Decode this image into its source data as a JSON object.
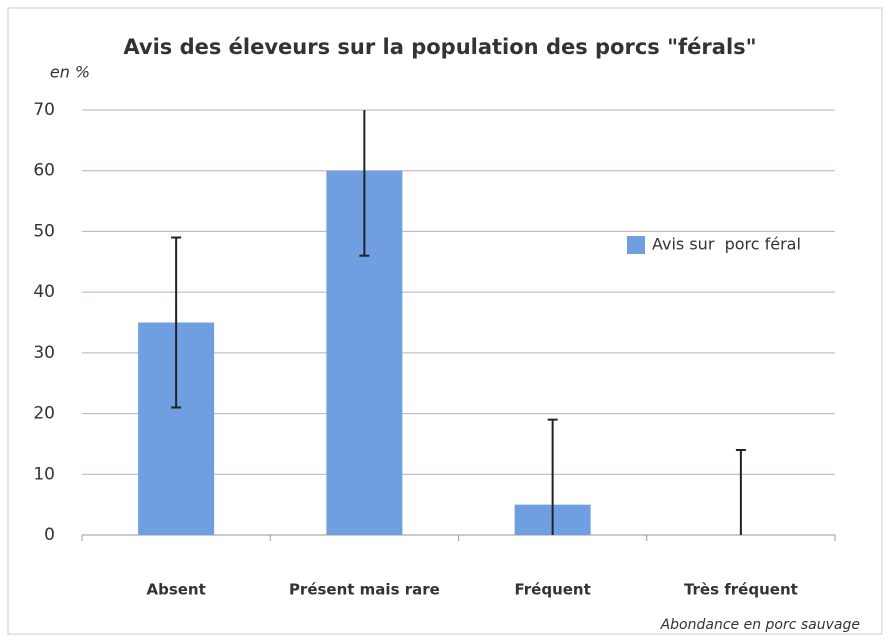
{
  "chart_data": {
    "type": "bar",
    "title": "Avis des éleveurs sur la population des porcs \"férals\"",
    "y_label": "en %",
    "x_label": "Abondance en porc sauvage",
    "categories": [
      "Absent",
      "Présent mais rare",
      "Fréquent",
      "Très fréquent"
    ],
    "series": [
      {
        "name": "Avis sur  porc féral",
        "color": "#6f9fe0",
        "values": [
          35,
          60,
          5,
          0
        ],
        "errors": [
          14,
          14,
          14,
          14
        ]
      }
    ],
    "ylim": [
      0,
      70
    ],
    "yticks": [
      0,
      10,
      20,
      30,
      40,
      50,
      60,
      70
    ],
    "grid": true,
    "legend": "right"
  }
}
